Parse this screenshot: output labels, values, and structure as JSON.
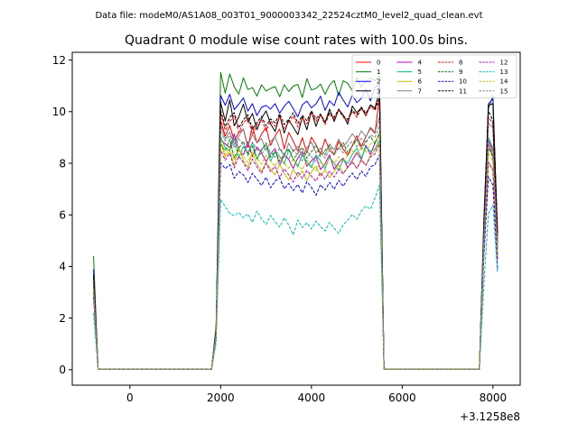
{
  "figure": {
    "suptitle": "Data file: modeM0/AS1A08_003T01_9000003342_22524cztM0_level2_quad_clean.evt",
    "title": "Quadrant 0 module wise count rates with 100.0s bins."
  },
  "chart_data": {
    "type": "line",
    "title": "Quadrant 0 module wise count rates with 100.0s bins.",
    "xlabel": "",
    "ylabel": "",
    "x_offset_label": "+3.1258e8",
    "xlim": [
      -1270,
      8600
    ],
    "ylim": [
      -0.6,
      12.3
    ],
    "xticks": [
      0,
      2000,
      4000,
      6000,
      8000
    ],
    "xtick_labels": [
      "0",
      "2000",
      "4000",
      "6000",
      "8000"
    ],
    "yticks": [
      0,
      2,
      4,
      6,
      8,
      10,
      12
    ],
    "ytick_labels": [
      "0",
      "2",
      "4",
      "6",
      "8",
      "10",
      "12"
    ],
    "grid": false,
    "legend": {
      "placement": "top-right",
      "columns": 4
    },
    "x": [
      -800,
      -700,
      1800,
      1900,
      2000,
      2100,
      2200,
      2300,
      2400,
      2500,
      2600,
      2700,
      2800,
      2900,
      3000,
      3100,
      3200,
      3300,
      3400,
      3500,
      3600,
      3700,
      3800,
      3900,
      4000,
      4100,
      4200,
      4300,
      4400,
      4500,
      4600,
      4700,
      4800,
      4900,
      5000,
      5100,
      5200,
      5300,
      5400,
      5500,
      5600,
      7700,
      7800,
      7900,
      8000,
      8100
    ],
    "series": [
      {
        "name": "0",
        "color": "#ff0000",
        "dash": "solid",
        "values": [
          3.3,
          0.02,
          0.02,
          1.45,
          9.65,
          9.06,
          9.46,
          8.88,
          9.19,
          9.33,
          8.61,
          9.45,
          8.78,
          9.13,
          9.4,
          8.69,
          9.06,
          9.33,
          8.56,
          9.2,
          8.86,
          8.47,
          8.99,
          8.4,
          9.01,
          8.72,
          8.36,
          8.94,
          8.51,
          8.32,
          8.85,
          8.54,
          8.31,
          8.68,
          9.07,
          8.64,
          9.03,
          9.35,
          9.16,
          10.59,
          0.02,
          0.02,
          5.3,
          8.79,
          8.24,
          4.91
        ]
      },
      {
        "name": "1",
        "color": "#008000",
        "dash": "solid",
        "values": [
          4.4,
          0.02,
          0.02,
          1.7,
          11.52,
          10.72,
          11.46,
          10.96,
          10.68,
          11.31,
          10.86,
          10.93,
          10.6,
          11.04,
          10.8,
          10.9,
          10.97,
          10.58,
          11.04,
          10.78,
          10.99,
          11.06,
          10.55,
          11.28,
          10.84,
          10.9,
          11.07,
          10.67,
          11.03,
          11.21,
          10.62,
          11.2,
          11.1,
          10.8,
          11.34,
          10.95,
          11.19,
          11.3,
          11.2,
          11.4,
          0.02,
          0.02,
          5.9,
          10.1,
          10.64,
          4.96
        ]
      },
      {
        "name": "2",
        "color": "#0000ff",
        "dash": "solid",
        "values": [
          3.9,
          0.02,
          0.02,
          1.6,
          10.63,
          10.25,
          10.67,
          10.08,
          10.29,
          10.53,
          10.02,
          10.31,
          9.85,
          10.17,
          10.24,
          10.1,
          10.31,
          9.94,
          10.21,
          10.4,
          10.12,
          9.8,
          10.27,
          10.41,
          10.15,
          10.3,
          10.6,
          10.05,
          10.42,
          10.23,
          10.75,
          10.45,
          10.18,
          10.64,
          10.35,
          10.52,
          10.87,
          10.42,
          10.95,
          11.05,
          0.02,
          0.02,
          5.7,
          10.3,
          10.5,
          5.28
        ]
      },
      {
        "name": "3",
        "color": "#000000",
        "dash": "solid",
        "values": [
          3.7,
          0.02,
          0.02,
          1.5,
          10.36,
          9.64,
          10.46,
          9.45,
          9.8,
          10.29,
          9.6,
          9.93,
          9.3,
          9.74,
          10.03,
          9.53,
          9.23,
          9.84,
          9.17,
          9.68,
          9.4,
          9.11,
          9.81,
          9.3,
          10.01,
          9.43,
          9.9,
          9.57,
          10.1,
          9.62,
          10.08,
          9.87,
          9.51,
          10.22,
          9.96,
          10.15,
          9.84,
          10.27,
          10.14,
          10.81,
          0.02,
          0.02,
          5.4,
          10.25,
          10.31,
          5.33
        ]
      },
      {
        "name": "4",
        "color": "#bf00bf",
        "dash": "solid",
        "values": [
          3.2,
          0.02,
          0.02,
          1.4,
          8.92,
          8.75,
          8.6,
          9.14,
          8.49,
          8.33,
          8.83,
          8.25,
          8.63,
          8.41,
          8.06,
          8.37,
          8.57,
          7.92,
          8.31,
          8.15,
          7.8,
          8.21,
          8.46,
          7.88,
          8.09,
          8.26,
          7.76,
          7.98,
          8.33,
          7.77,
          8.02,
          8.2,
          7.83,
          8.12,
          8.41,
          8.14,
          8.7,
          8.34,
          8.78,
          9.15,
          0.02,
          0.02,
          4.9,
          8.9,
          8.51,
          4.46
        ]
      },
      {
        "name": "5",
        "color": "#00bf7f",
        "dash": "solid",
        "values": [
          3.1,
          0.02,
          0.02,
          1.35,
          9.02,
          8.61,
          8.5,
          8.97,
          8.21,
          8.66,
          8.37,
          8.8,
          8.16,
          8.54,
          8.72,
          8.07,
          8.45,
          8.28,
          7.97,
          8.52,
          8.18,
          7.86,
          8.36,
          8.04,
          7.83,
          8.32,
          8.1,
          7.79,
          8.23,
          8.01,
          7.72,
          8.16,
          7.99,
          8.35,
          8.59,
          8.2,
          8.63,
          8.46,
          8.55,
          8.91,
          0.02,
          0.02,
          5.0,
          9.0,
          8.6,
          4.62
        ]
      },
      {
        "name": "6",
        "color": "#bfbf00",
        "dash": "solid",
        "values": [
          3.0,
          0.02,
          0.02,
          1.3,
          8.82,
          8.24,
          8.48,
          7.9,
          8.63,
          8.09,
          7.85,
          8.38,
          7.98,
          7.69,
          8.04,
          7.78,
          7.55,
          7.97,
          7.62,
          7.35,
          7.77,
          7.48,
          7.71,
          7.34,
          7.66,
          7.89,
          7.5,
          7.76,
          7.45,
          7.68,
          7.95,
          7.6,
          7.84,
          8.07,
          7.8,
          8.16,
          7.92,
          8.31,
          8.49,
          8.8,
          0.02,
          0.02,
          4.8,
          8.05,
          7.74,
          4.25
        ]
      },
      {
        "name": "7",
        "color": "#808080",
        "dash": "solid",
        "values": [
          3.4,
          0.02,
          0.02,
          1.45,
          9.48,
          8.95,
          9.21,
          8.73,
          9.05,
          9.34,
          8.68,
          9.12,
          8.79,
          8.96,
          8.5,
          8.84,
          9.03,
          8.56,
          8.27,
          8.78,
          8.45,
          8.66,
          8.25,
          8.61,
          8.82,
          8.4,
          8.59,
          8.31,
          8.75,
          8.52,
          8.94,
          8.64,
          8.86,
          9.15,
          8.9,
          9.26,
          9.02,
          9.4,
          9.2,
          9.8,
          0.02,
          0.02,
          5.2,
          9.55,
          9.38,
          4.78
        ]
      },
      {
        "name": "8",
        "color": "#ff0000",
        "dash": "dashed",
        "values": [
          3.5,
          0.02,
          0.02,
          1.5,
          9.95,
          9.28,
          9.62,
          9.85,
          9.19,
          9.57,
          9.76,
          9.11,
          9.49,
          9.7,
          9.26,
          9.64,
          9.43,
          9.8,
          9.35,
          9.58,
          9.84,
          9.4,
          9.75,
          9.53,
          9.96,
          9.62,
          9.88,
          9.5,
          9.92,
          9.71,
          10.05,
          9.79,
          9.63,
          10.01,
          9.78,
          10.13,
          9.86,
          10.2,
          10.05,
          10.45,
          0.02,
          0.02,
          5.5,
          9.8,
          9.52,
          5.07
        ]
      },
      {
        "name": "9",
        "color": "#008000",
        "dash": "dashed",
        "values": [
          3.0,
          0.02,
          0.02,
          1.35,
          8.72,
          8.49,
          8.93,
          8.22,
          8.58,
          8.86,
          8.3,
          8.66,
          8.17,
          8.52,
          8.79,
          8.24,
          8.46,
          8.08,
          8.35,
          8.57,
          8.13,
          8.39,
          8.62,
          8.19,
          8.44,
          8.71,
          8.27,
          8.5,
          8.68,
          8.33,
          8.59,
          8.8,
          8.41,
          8.67,
          8.92,
          8.56,
          8.84,
          9.05,
          8.75,
          9.2,
          0.02,
          0.02,
          5.0,
          8.6,
          8.25,
          4.68
        ]
      },
      {
        "name": "10",
        "color": "#0000ff",
        "dash": "dashed",
        "values": [
          2.8,
          0.02,
          0.02,
          1.25,
          8.02,
          7.79,
          7.95,
          7.42,
          7.68,
          7.55,
          7.26,
          7.61,
          7.39,
          7.14,
          7.46,
          7.05,
          7.31,
          7.43,
          7.01,
          7.22,
          6.94,
          7.18,
          6.85,
          7.29,
          7.07,
          6.76,
          7.17,
          6.96,
          7.26,
          6.99,
          7.34,
          7.11,
          7.4,
          7.62,
          7.37,
          7.7,
          7.49,
          7.86,
          7.95,
          8.32,
          0.02,
          0.02,
          4.4,
          7.48,
          7.15,
          3.92
        ]
      },
      {
        "name": "11",
        "color": "#000000",
        "dash": "dashed",
        "values": [
          3.6,
          0.02,
          0.02,
          1.55,
          10.05,
          9.42,
          9.78,
          9.96,
          9.37,
          9.69,
          9.88,
          9.31,
          9.58,
          9.82,
          9.45,
          9.72,
          9.57,
          9.92,
          9.5,
          9.7,
          9.96,
          9.55,
          9.86,
          9.65,
          10.03,
          9.73,
          9.91,
          9.59,
          9.98,
          9.78,
          10.1,
          9.84,
          9.7,
          10.07,
          9.87,
          10.18,
          9.93,
          10.26,
          10.1,
          10.54,
          0.02,
          0.02,
          5.6,
          10.02,
          9.66,
          5.18
        ]
      },
      {
        "name": "12",
        "color": "#bf00bf",
        "dash": "dashed",
        "values": [
          2.9,
          0.02,
          0.02,
          1.3,
          8.52,
          8.12,
          8.39,
          7.82,
          8.27,
          8.03,
          7.71,
          8.16,
          7.86,
          7.61,
          8.0,
          7.68,
          7.88,
          7.44,
          7.79,
          7.55,
          7.27,
          7.67,
          7.41,
          7.73,
          7.5,
          7.31,
          7.64,
          7.38,
          7.7,
          7.46,
          7.77,
          7.59,
          7.85,
          8.05,
          7.8,
          8.12,
          7.92,
          8.25,
          8.36,
          8.74,
          0.02,
          0.02,
          4.7,
          8.04,
          7.73,
          4.27
        ]
      },
      {
        "name": "13",
        "color": "#00bfbf",
        "dash": "dashed",
        "values": [
          2.2,
          0.02,
          0.02,
          1.05,
          6.6,
          6.32,
          6.06,
          5.97,
          6.1,
          5.88,
          6.04,
          5.71,
          6.15,
          5.84,
          5.63,
          5.98,
          5.74,
          5.52,
          5.89,
          5.61,
          5.23,
          5.8,
          5.51,
          5.7,
          5.45,
          5.76,
          5.55,
          5.37,
          5.71,
          5.48,
          5.28,
          5.62,
          5.79,
          6.02,
          5.83,
          6.15,
          6.34,
          6.22,
          6.65,
          7.15,
          0.02,
          0.02,
          3.3,
          6.05,
          6.38,
          3.74
        ]
      },
      {
        "name": "14",
        "color": "#bfbf00",
        "dash": "dashed",
        "values": [
          3.1,
          0.02,
          0.02,
          1.35,
          8.92,
          8.34,
          8.68,
          8.12,
          8.51,
          8.27,
          8.04,
          8.45,
          8.2,
          7.96,
          8.33,
          8.09,
          7.88,
          8.24,
          8.01,
          7.8,
          8.18,
          7.94,
          7.75,
          8.13,
          7.89,
          7.71,
          8.07,
          7.86,
          8.2,
          7.99,
          8.26,
          8.05,
          8.31,
          8.5,
          8.29,
          8.62,
          8.43,
          8.75,
          8.85,
          9.1,
          0.02,
          0.02,
          4.9,
          8.4,
          8.05,
          4.5
        ]
      },
      {
        "name": "15",
        "color": "#808080",
        "dash": "dashed",
        "values": [
          3.2,
          0.02,
          0.02,
          1.4,
          9.22,
          8.87,
          9.08,
          8.59,
          8.95,
          8.71,
          8.4,
          8.82,
          8.55,
          8.31,
          8.69,
          8.44,
          8.23,
          8.6,
          8.37,
          8.16,
          8.54,
          8.29,
          8.1,
          8.47,
          8.25,
          8.05,
          8.41,
          8.2,
          8.52,
          8.34,
          8.63,
          8.4,
          8.67,
          8.86,
          8.64,
          8.97,
          8.78,
          9.1,
          9.0,
          9.45,
          0.02,
          0.02,
          5.1,
          8.78,
          8.42,
          4.73
        ]
      }
    ]
  }
}
